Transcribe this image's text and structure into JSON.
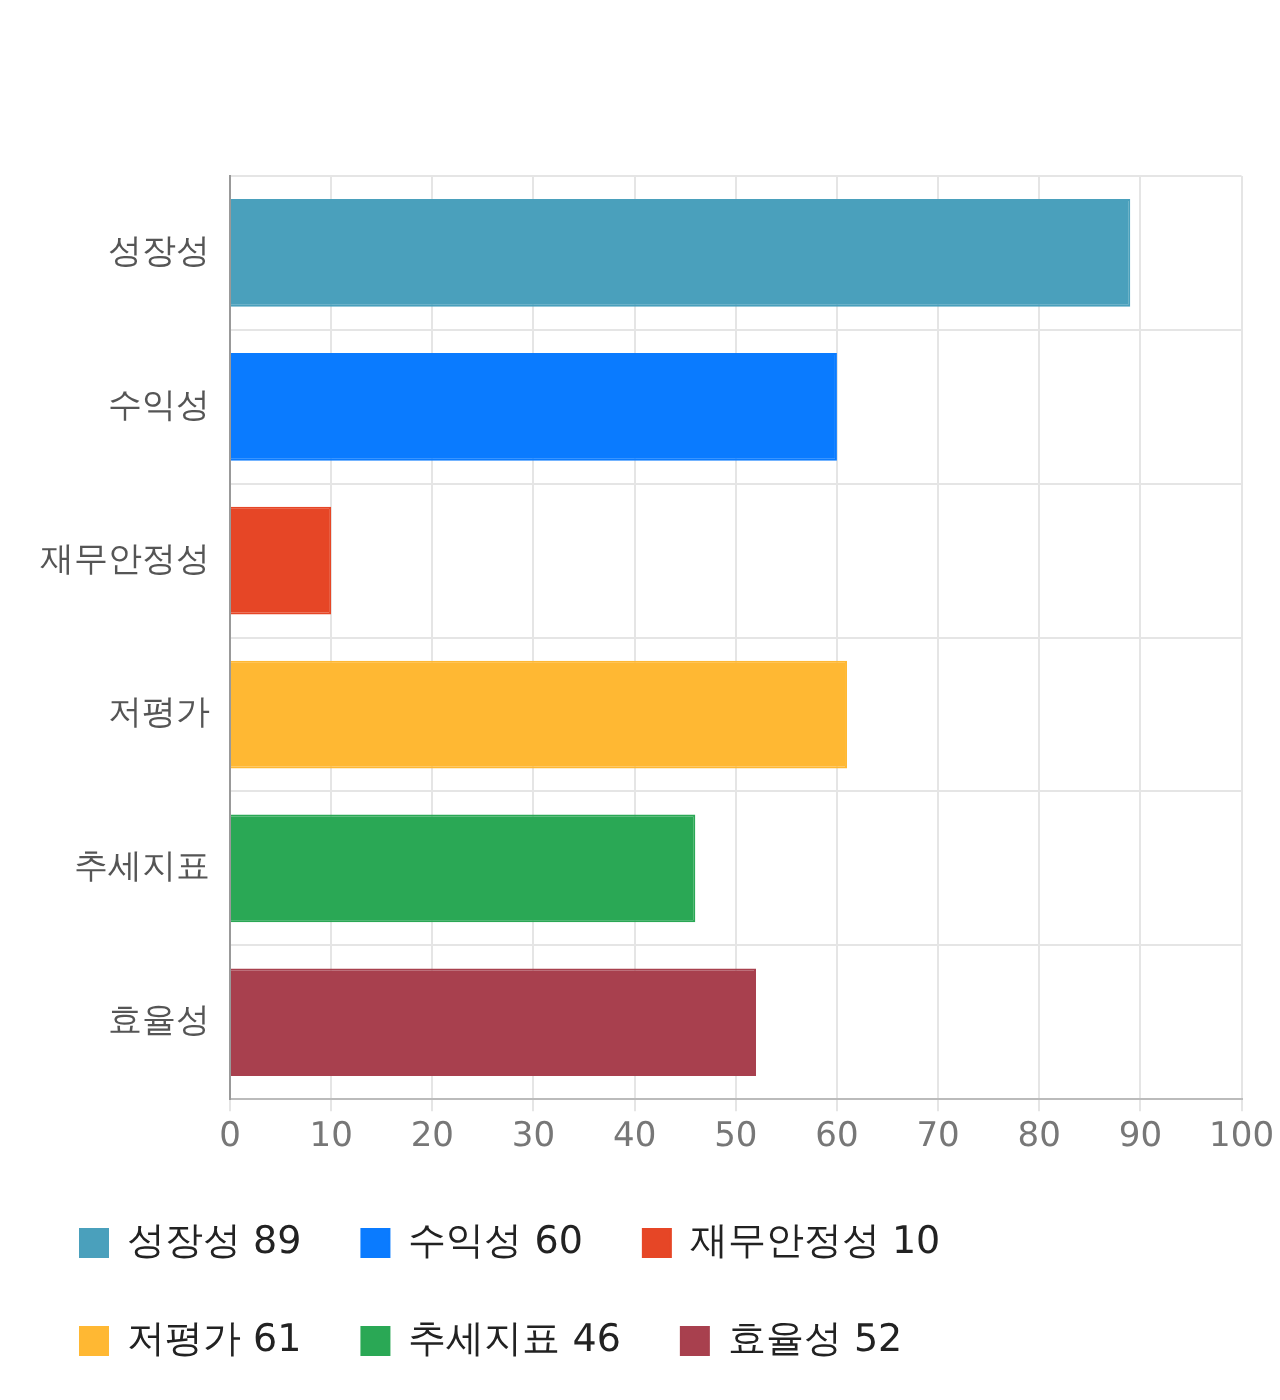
{
  "chart_data": {
    "type": "bar",
    "orientation": "horizontal",
    "stacked": true,
    "categories": [
      "성장성",
      "수익성",
      "재무안정성",
      "저평가",
      "추세지표",
      "효율성"
    ],
    "series": [
      {
        "name": "성장성 89",
        "color": "#4aa0bc",
        "values": [
          89,
          null,
          null,
          null,
          null,
          null
        ]
      },
      {
        "name": "수익성 60",
        "color": "#0a7bff",
        "values": [
          null,
          60,
          null,
          null,
          null,
          null
        ]
      },
      {
        "name": "재무안정성 10",
        "color": "#e64626",
        "values": [
          null,
          null,
          10,
          null,
          null,
          null
        ]
      },
      {
        "name": "저평가 61",
        "color": "#ffb833",
        "values": [
          null,
          null,
          null,
          61,
          null,
          null
        ]
      },
      {
        "name": "추세지표 46",
        "color": "#2aa855",
        "values": [
          null,
          null,
          null,
          null,
          46,
          null
        ]
      },
      {
        "name": "효율성 52",
        "color": "#a8404e",
        "values": [
          null,
          null,
          null,
          null,
          null,
          52
        ]
      }
    ],
    "xlim": [
      0,
      100
    ],
    "xticks": [
      0,
      10,
      20,
      30,
      40,
      50,
      60,
      70,
      80,
      90,
      100
    ],
    "grid": true,
    "legend": "bottom"
  }
}
